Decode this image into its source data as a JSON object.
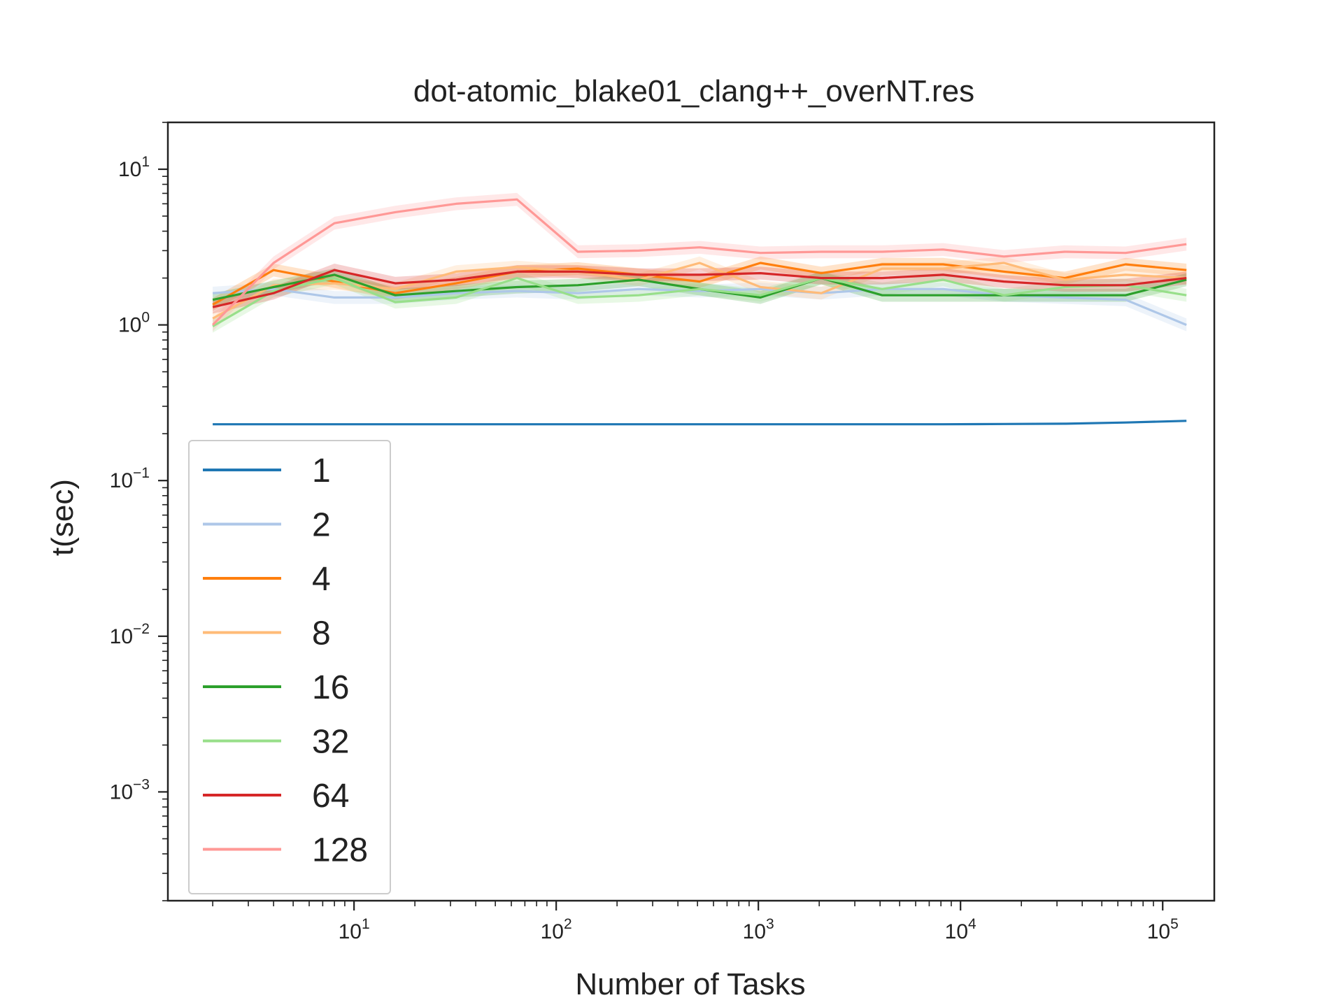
{
  "chart_data": {
    "type": "line",
    "title": "dot-atomic_blake01_clang++_overNT.res",
    "xlabel": "Number of Tasks",
    "ylabel": "t(sec)",
    "xscale": "log",
    "yscale": "log",
    "xlim": [
      1.2,
      180000
    ],
    "ylim": [
      0.0002,
      20
    ],
    "x_ticks": [
      {
        "base": "10",
        "exp": "1",
        "value": 10
      },
      {
        "base": "10",
        "exp": "2",
        "value": 100
      },
      {
        "base": "10",
        "exp": "3",
        "value": 1000
      },
      {
        "base": "10",
        "exp": "4",
        "value": 10000
      },
      {
        "base": "10",
        "exp": "5",
        "value": 100000
      }
    ],
    "y_ticks": [
      {
        "base": "10",
        "exp": "1",
        "value": 10
      },
      {
        "base": "10",
        "exp": "0",
        "value": 1
      },
      {
        "base": "10",
        "exp": "−1",
        "value": 0.1
      },
      {
        "base": "10",
        "exp": "−2",
        "value": 0.01
      },
      {
        "base": "10",
        "exp": "−3",
        "value": 0.001
      }
    ],
    "grid": false,
    "legend": "lower-left",
    "x": [
      2,
      4,
      8,
      16,
      32,
      64,
      128,
      256,
      512,
      1024,
      2048,
      4096,
      8192,
      16384,
      32768,
      65536,
      131072
    ],
    "series": [
      {
        "name": "1",
        "color": "#1f77b4",
        "values": [
          0.23,
          0.23,
          0.23,
          0.23,
          0.23,
          0.23,
          0.23,
          0.23,
          0.23,
          0.23,
          0.23,
          0.23,
          0.23,
          0.231,
          0.232,
          0.236,
          0.242
        ]
      },
      {
        "name": "2",
        "color": "#aec7e8",
        "values": [
          1.6,
          1.7,
          1.5,
          1.5,
          1.6,
          1.65,
          1.6,
          1.7,
          1.65,
          1.7,
          1.6,
          1.7,
          1.7,
          1.55,
          1.5,
          1.45,
          1.0
        ]
      },
      {
        "name": "4",
        "color": "#ff7f0e",
        "values": [
          1.35,
          2.25,
          1.9,
          1.6,
          1.85,
          2.2,
          2.3,
          2.1,
          1.9,
          2.5,
          2.15,
          2.45,
          2.45,
          2.2,
          2.0,
          2.45,
          2.25
        ]
      },
      {
        "name": "8",
        "color": "#ffbb78",
        "values": [
          1.1,
          1.8,
          1.85,
          1.7,
          2.2,
          2.35,
          2.2,
          1.95,
          2.5,
          1.75,
          1.6,
          2.3,
          2.3,
          2.5,
          1.95,
          2.1,
          2.0
        ]
      },
      {
        "name": "16",
        "color": "#2ca02c",
        "values": [
          1.45,
          1.75,
          2.1,
          1.55,
          1.65,
          1.75,
          1.8,
          1.95,
          1.7,
          1.5,
          2.0,
          1.55,
          1.55,
          1.55,
          1.55,
          1.55,
          1.95
        ]
      },
      {
        "name": "32",
        "color": "#98df8a",
        "values": [
          0.98,
          1.65,
          2.0,
          1.4,
          1.5,
          2.0,
          1.5,
          1.55,
          1.7,
          1.55,
          2.0,
          1.7,
          1.95,
          1.55,
          1.75,
          1.8,
          1.55
        ]
      },
      {
        "name": "64",
        "color": "#d62728",
        "values": [
          1.3,
          1.6,
          2.25,
          1.85,
          1.95,
          2.2,
          2.2,
          2.1,
          2.1,
          2.15,
          2.0,
          2.0,
          2.1,
          1.9,
          1.8,
          1.8,
          2.0
        ]
      },
      {
        "name": "128",
        "color": "#ff9896",
        "values": [
          1.0,
          2.5,
          4.5,
          5.3,
          6.0,
          6.4,
          2.95,
          3.0,
          3.15,
          2.9,
          2.95,
          2.95,
          3.05,
          2.75,
          2.95,
          2.9,
          3.3
        ]
      }
    ]
  }
}
